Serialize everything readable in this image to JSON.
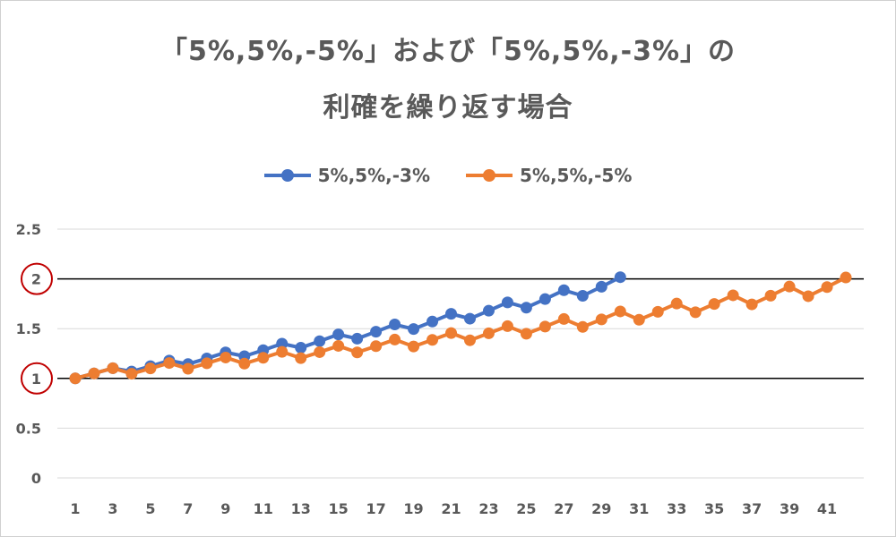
{
  "chart_data": {
    "type": "line",
    "title_line1": "「5%,5%,-5%」および「5%,5%,-3%」の",
    "title_line2": "利確を繰り返す場合",
    "xlabel": "",
    "ylabel": "",
    "ylim": [
      0,
      2.5
    ],
    "y_ticks": [
      "0",
      "0.5",
      "1",
      "1.5",
      "2",
      "2.5"
    ],
    "y_tick_values": [
      0,
      0.5,
      1,
      1.5,
      2,
      2.5
    ],
    "x_ticks": [
      "1",
      "3",
      "5",
      "7",
      "9",
      "11",
      "13",
      "15",
      "17",
      "19",
      "21",
      "23",
      "25",
      "27",
      "29",
      "31",
      "33",
      "35",
      "37",
      "39",
      "41"
    ],
    "x_range": [
      1,
      42
    ],
    "highlighted_y_ticks": [
      1,
      2
    ],
    "reference_lines": [
      1,
      2
    ],
    "legend_position": "top",
    "grid": true,
    "series": [
      {
        "name": "5%,5%,-3%",
        "color": "#4472c4",
        "values": [
          1,
          1.05,
          1.1025,
          1.069,
          1.123,
          1.179,
          1.144,
          1.201,
          1.261,
          1.223,
          1.284,
          1.349,
          1.308,
          1.374,
          1.442,
          1.399,
          1.469,
          1.542,
          1.496,
          1.571,
          1.649,
          1.6,
          1.68,
          1.764,
          1.711,
          1.797,
          1.886,
          1.83,
          1.921,
          2.017
        ]
      },
      {
        "name": "5%,5%,-5%",
        "color": "#ed7d31",
        "values": [
          1,
          1.05,
          1.1025,
          1.047,
          1.1,
          1.155,
          1.097,
          1.152,
          1.21,
          1.149,
          1.207,
          1.267,
          1.204,
          1.264,
          1.327,
          1.261,
          1.324,
          1.39,
          1.321,
          1.387,
          1.456,
          1.383,
          1.453,
          1.525,
          1.449,
          1.521,
          1.597,
          1.517,
          1.593,
          1.673,
          1.589,
          1.669,
          1.752,
          1.665,
          1.748,
          1.835,
          1.744,
          1.831,
          1.923,
          1.826,
          1.918,
          2.014
        ]
      }
    ]
  }
}
